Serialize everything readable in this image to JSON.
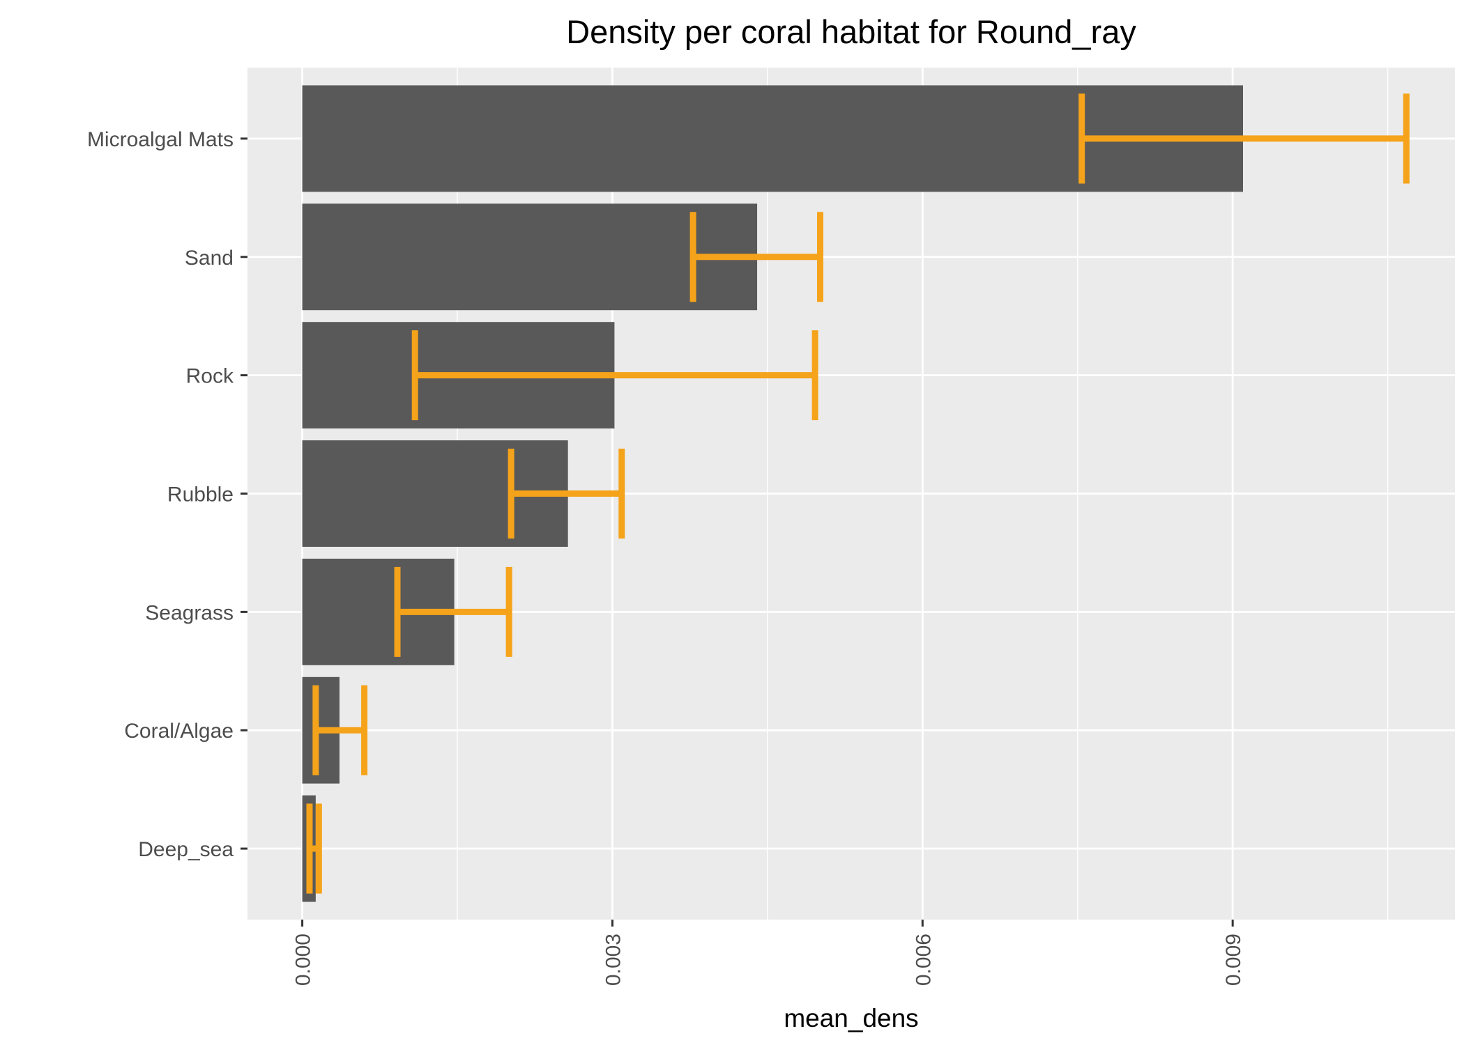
{
  "chart_data": {
    "type": "bar",
    "orientation": "horizontal",
    "title": "Density per coral habitat for Round_ray",
    "xlabel": "mean_dens",
    "ylabel": "",
    "categories": [
      "Microalgal Mats",
      "Sand",
      "Rock",
      "Rubble",
      "Seagrass",
      "Coral/Algae",
      "Deep_sea"
    ],
    "values": [
      0.0091,
      0.0044,
      0.00302,
      0.00257,
      0.00147,
      0.00036,
      0.00013
    ],
    "error_low": [
      0.00754,
      0.00378,
      0.00109,
      0.00202,
      0.00092,
      0.00013,
      7e-05
    ],
    "error_high": [
      0.01068,
      0.00501,
      0.00496,
      0.00309,
      0.002,
      0.0006,
      0.00016
    ],
    "xlim": [
      -0.00053,
      0.01115
    ],
    "x_ticks": [
      "0.000",
      "0.003",
      "0.006",
      "0.009"
    ],
    "x_tick_values": [
      0,
      0.003,
      0.006,
      0.009
    ],
    "grid": true,
    "legend": "none",
    "colors": {
      "bar": "#595959",
      "errorbar": "#F5A31A",
      "panel_background": "#EBEBEB",
      "grid_major": "#FFFFFF",
      "axis_text": "#4D4D4D",
      "title": "#000000"
    }
  }
}
